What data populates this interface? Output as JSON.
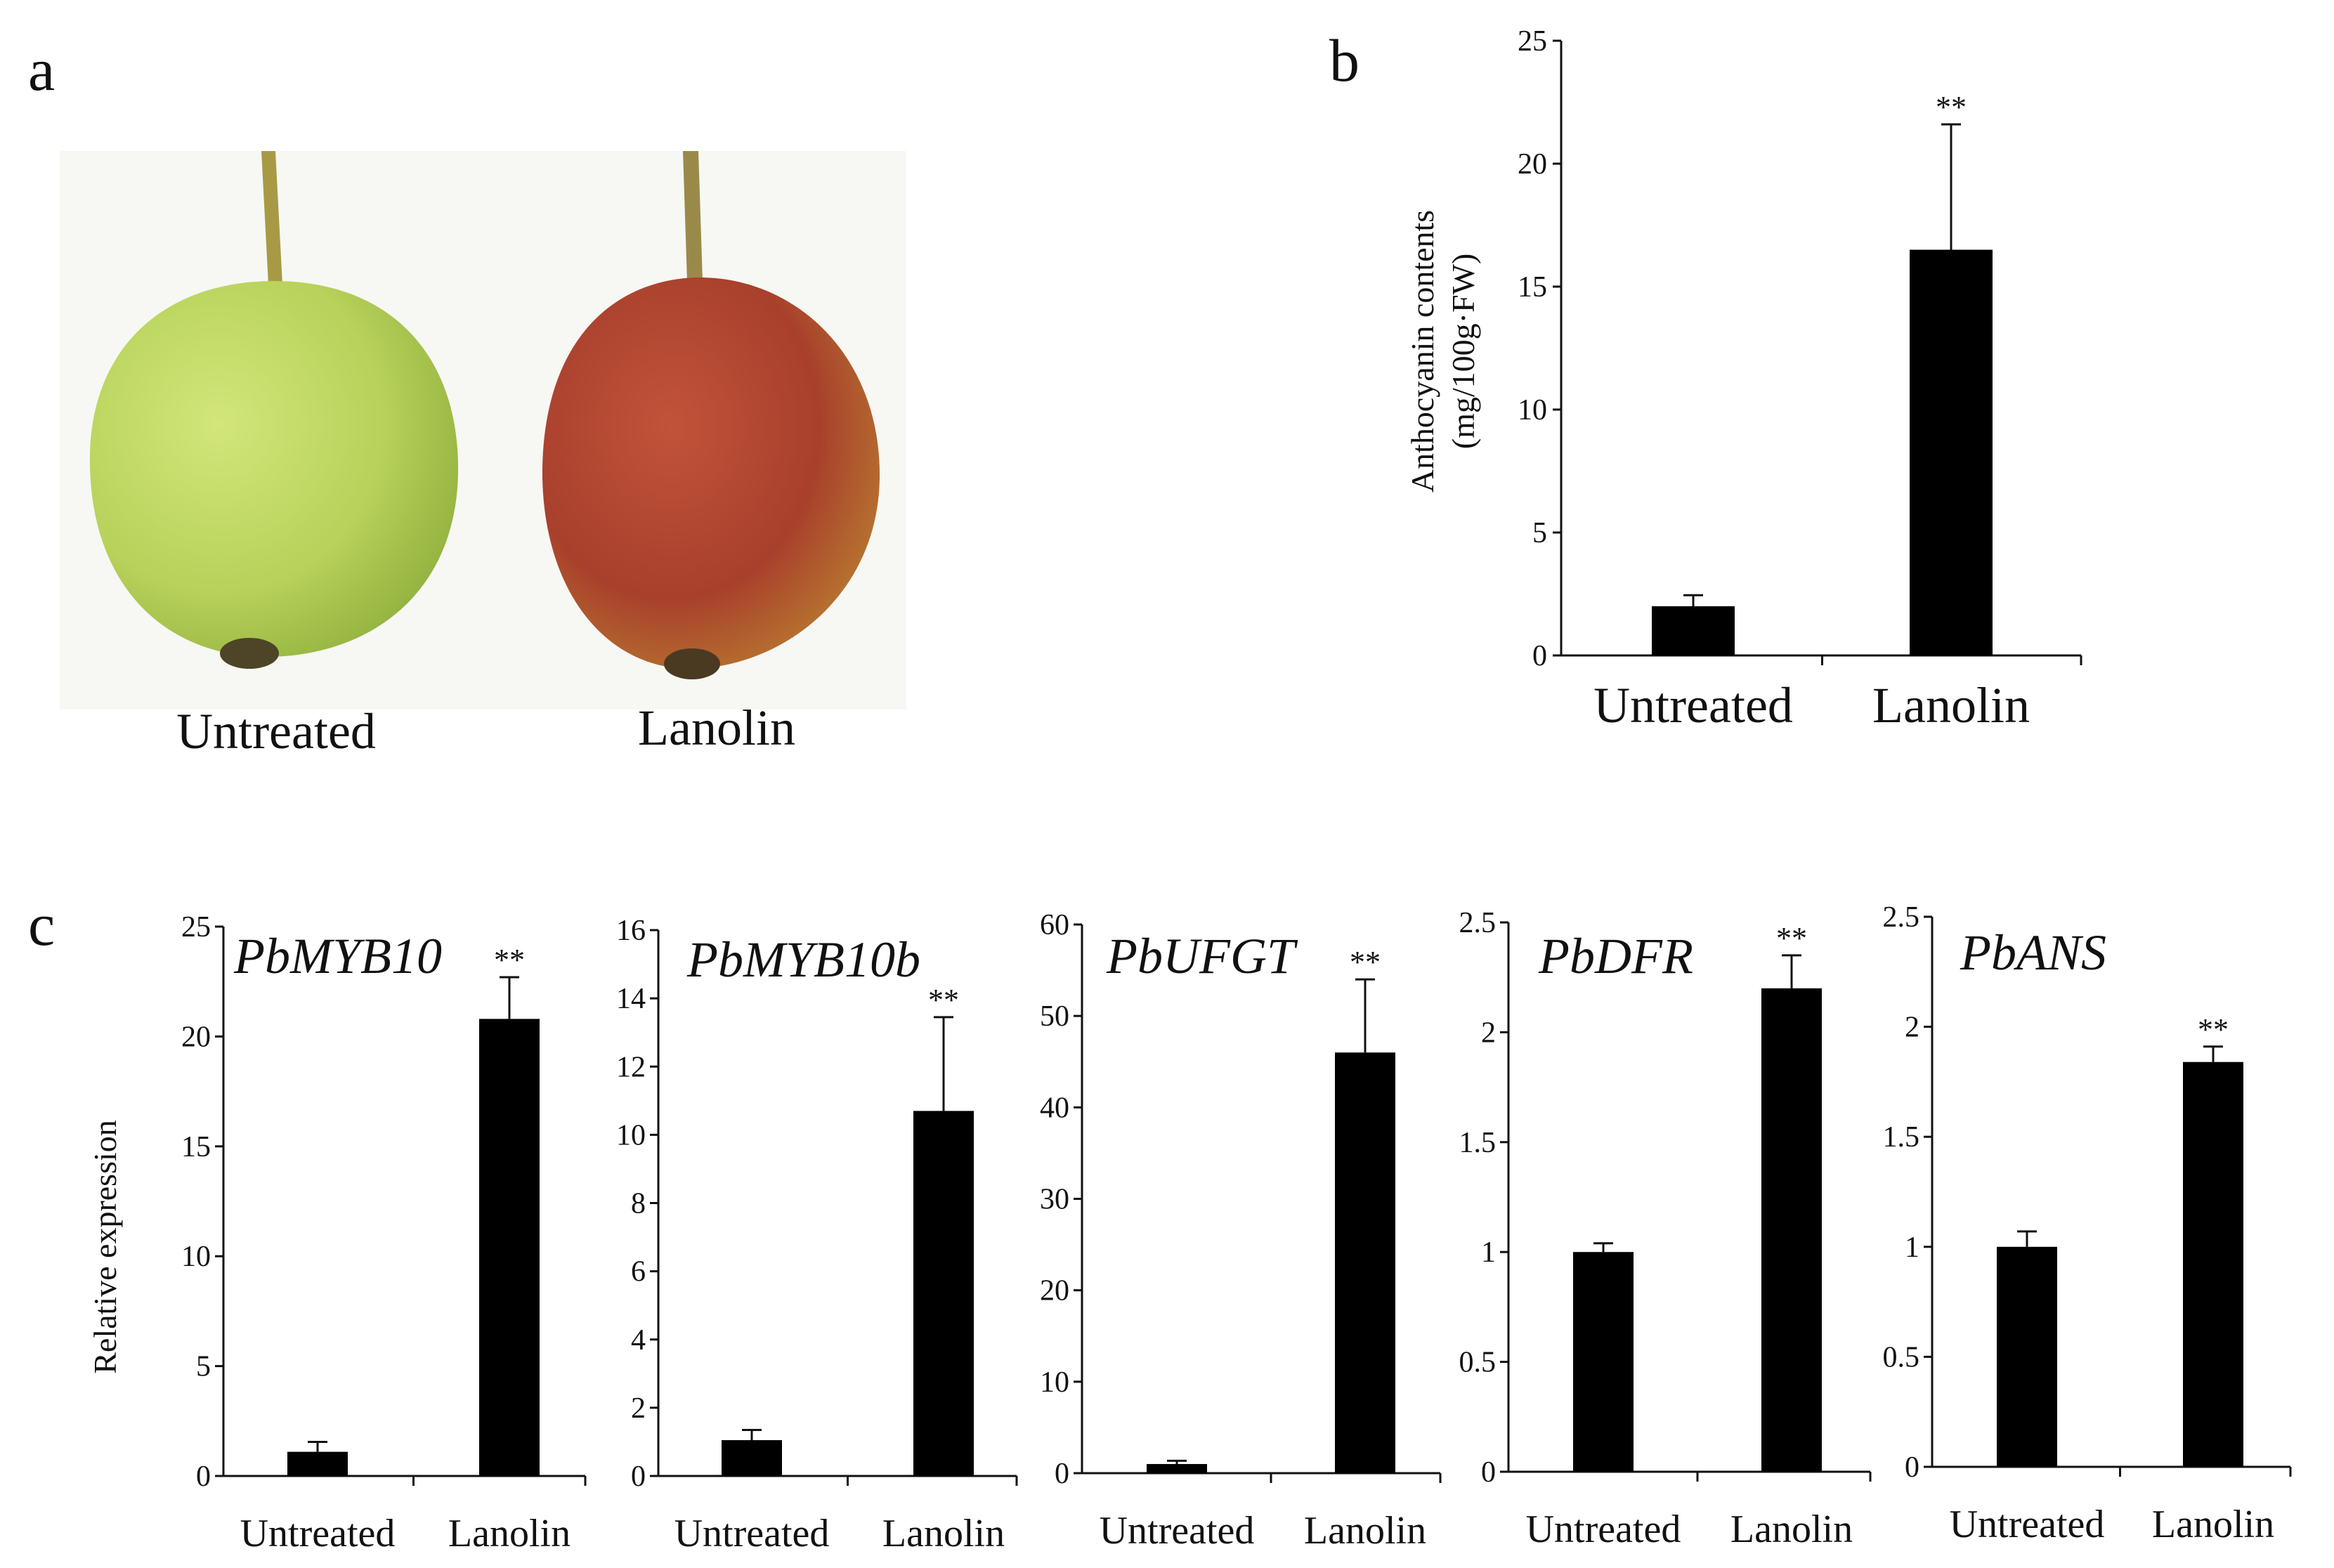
{
  "panels": {
    "a": {
      "letter": "a",
      "photos": [
        {
          "label": "Untreated",
          "fruit_color": "#b9d35a"
        },
        {
          "label": "Lanolin",
          "fruit_color": "#b2452e"
        }
      ]
    },
    "b": {
      "letter": "b"
    },
    "c": {
      "letter": "c"
    }
  },
  "colors": {
    "bar": "#000000",
    "axis": "#111111",
    "background": "#ffffff"
  },
  "chart_data": [
    {
      "id": "b",
      "type": "bar",
      "title": "",
      "xlabel": "",
      "ylabel": "Anthocyanin contents (mg/100g·FW)",
      "ylabel_lines": [
        "Anthocyanin contents",
        "(mg/100g·FW)"
      ],
      "categories": [
        "Untreated",
        "Lanolin"
      ],
      "values": [
        2.0,
        16.5
      ],
      "errors": [
        0.45,
        5.1
      ],
      "significance": [
        "",
        "**"
      ],
      "ylim": [
        0,
        25
      ],
      "yticks": [
        0,
        5,
        10,
        15,
        20,
        25
      ],
      "ytick_labels": [
        "0",
        "5",
        "10",
        "15",
        "20",
        "25"
      ],
      "grid": false
    },
    {
      "id": "c1",
      "type": "bar",
      "title": "PbMYB10",
      "xlabel": "",
      "ylabel": "Relative expression",
      "categories": [
        "Untreated",
        "Lanolin"
      ],
      "values": [
        1.1,
        20.8
      ],
      "errors": [
        0.45,
        1.9
      ],
      "significance": [
        "",
        "**"
      ],
      "ylim": [
        0,
        25
      ],
      "yticks": [
        0,
        5,
        10,
        15,
        20,
        25
      ],
      "ytick_labels": [
        "0",
        "5",
        "10",
        "15",
        "20",
        "25"
      ],
      "grid": false
    },
    {
      "id": "c2",
      "type": "bar",
      "title": "PbMYB10b",
      "xlabel": "",
      "ylabel": "",
      "categories": [
        "Untreated",
        "Lanolin"
      ],
      "values": [
        1.05,
        10.7
      ],
      "errors": [
        0.3,
        2.75
      ],
      "significance": [
        "",
        "**"
      ],
      "ylim": [
        0,
        16
      ],
      "yticks": [
        0,
        2,
        4,
        6,
        8,
        10,
        12,
        14,
        16
      ],
      "ytick_labels": [
        "0",
        "2",
        "4",
        "6",
        "8",
        "10",
        "12",
        "14",
        "16"
      ],
      "grid": false
    },
    {
      "id": "c3",
      "type": "bar",
      "title": "PbUFGT",
      "xlabel": "",
      "ylabel": "",
      "categories": [
        "Untreated",
        "Lanolin"
      ],
      "values": [
        1.0,
        46.0
      ],
      "errors": [
        0.35,
        8.0
      ],
      "significance": [
        "",
        "**"
      ],
      "ylim": [
        0,
        60
      ],
      "yticks": [
        0,
        10,
        20,
        30,
        40,
        50,
        60
      ],
      "ytick_labels": [
        "0",
        "10",
        "20",
        "30",
        "40",
        "50",
        "60"
      ],
      "grid": false
    },
    {
      "id": "c4",
      "type": "bar",
      "title": "PbDFR",
      "xlabel": "",
      "ylabel": "",
      "categories": [
        "Untreated",
        "Lanolin"
      ],
      "values": [
        1.0,
        2.2
      ],
      "errors": [
        0.04,
        0.15
      ],
      "significance": [
        "",
        "**"
      ],
      "ylim": [
        0,
        2.5
      ],
      "yticks": [
        0,
        0.5,
        1,
        1.5,
        2,
        2.5
      ],
      "ytick_labels": [
        "0",
        "0.5",
        "1",
        "1.5",
        "2",
        "2.5"
      ],
      "grid": false
    },
    {
      "id": "c5",
      "type": "bar",
      "title": "PbANS",
      "xlabel": "",
      "ylabel": "",
      "categories": [
        "Untreated",
        "Lanolin"
      ],
      "values": [
        1.0,
        1.84
      ],
      "errors": [
        0.07,
        0.07
      ],
      "significance": [
        "",
        "**"
      ],
      "ylim": [
        0,
        2.5
      ],
      "yticks": [
        0,
        0.5,
        1,
        1.5,
        2,
        2.5
      ],
      "ytick_labels": [
        "0",
        "0.5",
        "1",
        "1.5",
        "2",
        "2.5"
      ],
      "grid": false
    }
  ]
}
